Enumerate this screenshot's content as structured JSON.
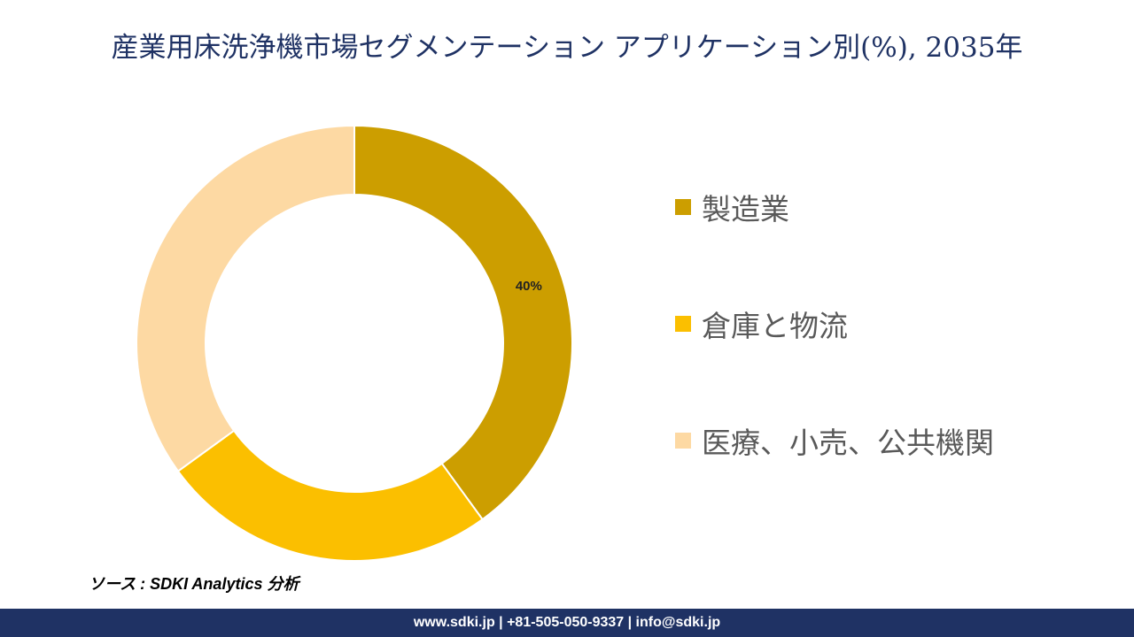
{
  "chart_data": {
    "type": "pie",
    "variant": "donut",
    "title": "産業用床洗浄機市場セグメンテーション アプリケーション別(%), 2035年",
    "categories": [
      "製造業",
      "倉庫と物流",
      "医療、小売、公共機関"
    ],
    "values": [
      40,
      25,
      35
    ],
    "data_labels": [
      "40%",
      "",
      ""
    ],
    "legend_position": "right",
    "colors": [
      "#cc9e00",
      "#fbbf00",
      "#fdd9a3"
    ]
  },
  "source": "ソース : SDKI Analytics 分析",
  "footer": "www.sdki.jp | +81-505-050-9337 | info@sdki.jp"
}
